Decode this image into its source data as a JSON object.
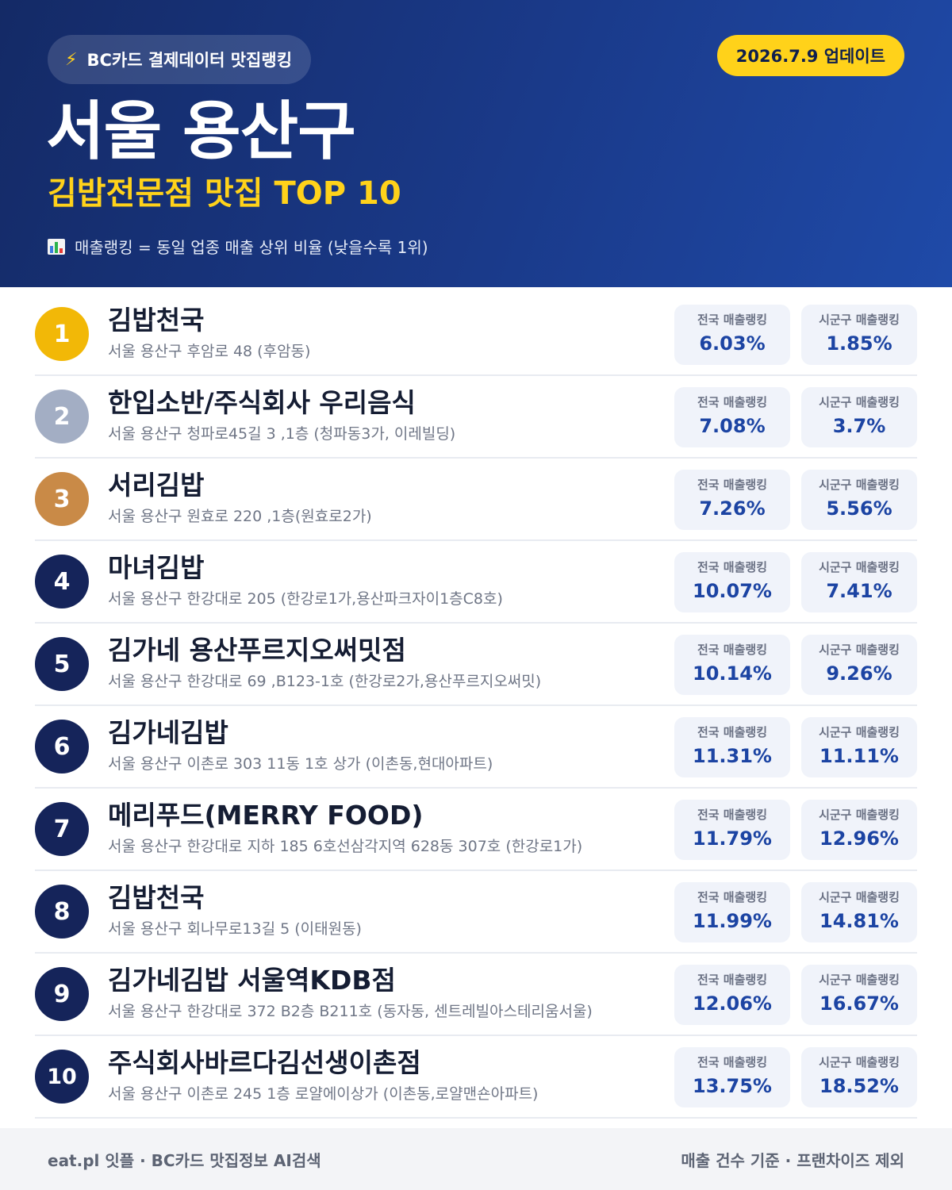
{
  "header": {
    "source_label": "BC카드 결제데이터 맛집랭킹",
    "update_label": "2026.7.9 업데이트",
    "title": "서울 용산구",
    "subtitle": "김밥전문점 맛집 TOP 10",
    "note": "매출랭킹 = 동일 업종 매출 상위 비율 (낮을수록 1위)",
    "accent_color": "#ffd21a",
    "bg_color": "#1a3a8a"
  },
  "labels": {
    "national": "전국 매출랭킹",
    "district": "시군구 매출랭킹"
  },
  "ranks": [
    {
      "rank": "1",
      "name": "김밥천국",
      "address": "서울 용산구 후암로 48 (후암동)",
      "national": "6.03%",
      "district": "1.85%"
    },
    {
      "rank": "2",
      "name": "한입소반/주식회사 우리음식",
      "address": "서울 용산구 청파로45길 3 ,1층 (청파동3가, 이레빌딩)",
      "national": "7.08%",
      "district": "3.7%"
    },
    {
      "rank": "3",
      "name": "서리김밥",
      "address": "서울 용산구 원효로 220 ,1층(원효로2가)",
      "national": "7.26%",
      "district": "5.56%"
    },
    {
      "rank": "4",
      "name": "마녀김밥",
      "address": "서울 용산구 한강대로 205 (한강로1가,용산파크자이1층C8호)",
      "national": "10.07%",
      "district": "7.41%"
    },
    {
      "rank": "5",
      "name": "김가네 용산푸르지오써밋점",
      "address": "서울 용산구 한강대로 69 ,B123-1호 (한강로2가,용산푸르지오써밋)",
      "national": "10.14%",
      "district": "9.26%"
    },
    {
      "rank": "6",
      "name": "김가네김밥",
      "address": "서울 용산구 이촌로 303 11동 1호 상가 (이촌동,현대아파트)",
      "national": "11.31%",
      "district": "11.11%"
    },
    {
      "rank": "7",
      "name": "메리푸드(MERRY FOOD)",
      "address": "서울 용산구 한강대로 지하 185 6호선삼각지역 628동 307호 (한강로1가)",
      "national": "11.79%",
      "district": "12.96%"
    },
    {
      "rank": "8",
      "name": "김밥천국",
      "address": "서울 용산구 회나무로13길 5 (이태원동)",
      "national": "11.99%",
      "district": "14.81%"
    },
    {
      "rank": "9",
      "name": "김가네김밥 서울역KDB점",
      "address": "서울 용산구 한강대로 372 B2층 B211호 (동자동, 센트레빌아스테리움서울)",
      "national": "12.06%",
      "district": "16.67%"
    },
    {
      "rank": "10",
      "name": "주식회사바르다김선생이촌점",
      "address": "서울 용산구 이촌로 245 1층 로얄에이상가 (이촌동,로얄맨숀아파트)",
      "national": "13.75%",
      "district": "18.52%"
    }
  ],
  "footer": {
    "left": "eat.pl 잇플 · BC카드 맛집정보 AI검색",
    "right": "매출 건수 기준 · 프랜차이즈 제외"
  }
}
